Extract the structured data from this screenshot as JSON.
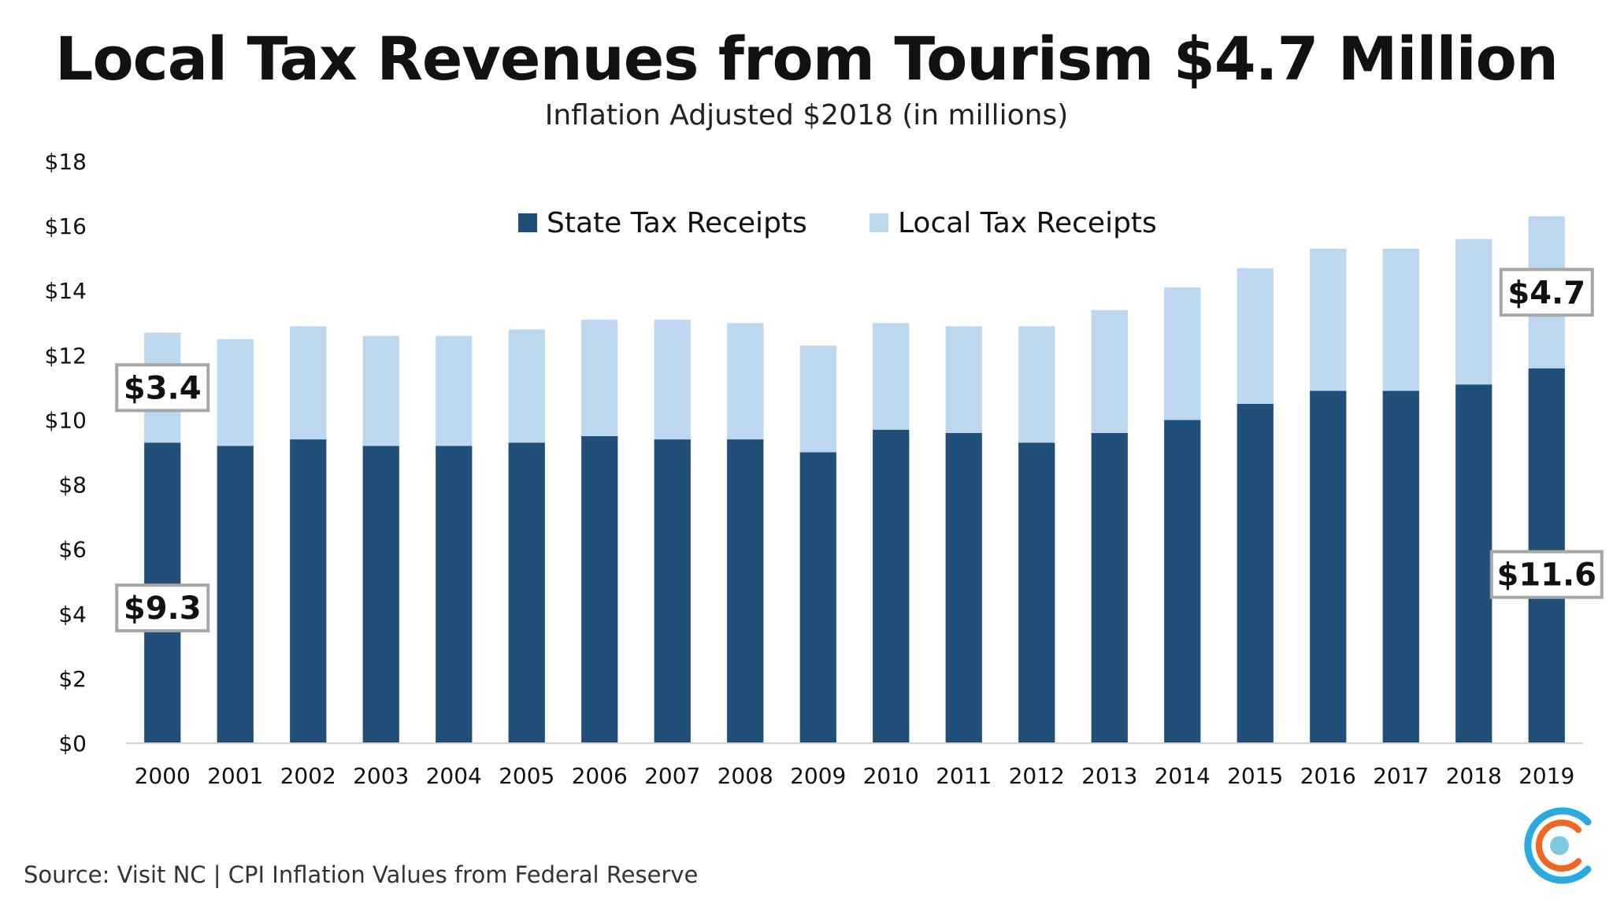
{
  "chart_data": {
    "type": "bar",
    "stacked": true,
    "title": "Local Tax Revenues from Tourism $4.7 Million",
    "subtitle": "Inflation Adjusted $2018 (in millions)",
    "categories": [
      "2000",
      "2001",
      "2002",
      "2003",
      "2004",
      "2005",
      "2006",
      "2007",
      "2008",
      "2009",
      "2010",
      "2011",
      "2012",
      "2013",
      "2014",
      "2015",
      "2016",
      "2017",
      "2018",
      "2019"
    ],
    "series": [
      {
        "name": "State Tax Receipts",
        "color": "#1f4e79",
        "values": [
          9.3,
          9.2,
          9.4,
          9.2,
          9.2,
          9.3,
          9.5,
          9.4,
          9.4,
          9.0,
          9.7,
          9.6,
          9.3,
          9.6,
          10.0,
          10.5,
          10.9,
          10.9,
          11.1,
          11.6
        ]
      },
      {
        "name": "Local Tax Receipts",
        "color": "#bdd7ee",
        "values": [
          3.4,
          3.3,
          3.5,
          3.4,
          3.4,
          3.5,
          3.6,
          3.7,
          3.6,
          3.3,
          3.3,
          3.3,
          3.6,
          3.8,
          4.1,
          4.2,
          4.4,
          4.4,
          4.5,
          4.7
        ]
      }
    ],
    "yticks": [
      "$0",
      "$2",
      "$4",
      "$6",
      "$8",
      "$10",
      "$12",
      "$14",
      "$16",
      "$18"
    ],
    "ylim": [
      0,
      18
    ],
    "legend_position": "top-center",
    "grid": false,
    "callouts": [
      {
        "label": "$3.4",
        "category": "2000",
        "series": "Local Tax Receipts"
      },
      {
        "label": "$9.3",
        "category": "2000",
        "series": "State Tax Receipts"
      },
      {
        "label": "$4.7",
        "category": "2019",
        "series": "Local Tax Receipts"
      },
      {
        "label": "$11.6",
        "category": "2019",
        "series": "State Tax Receipts"
      }
    ]
  },
  "source": "Source: Visit NC | CPI Inflation Values from Federal Reserve",
  "logo": {
    "icon": "concentric-c-logo-icon",
    "colors": [
      "#29abe2",
      "#f26522",
      "#7ec8e3"
    ]
  }
}
